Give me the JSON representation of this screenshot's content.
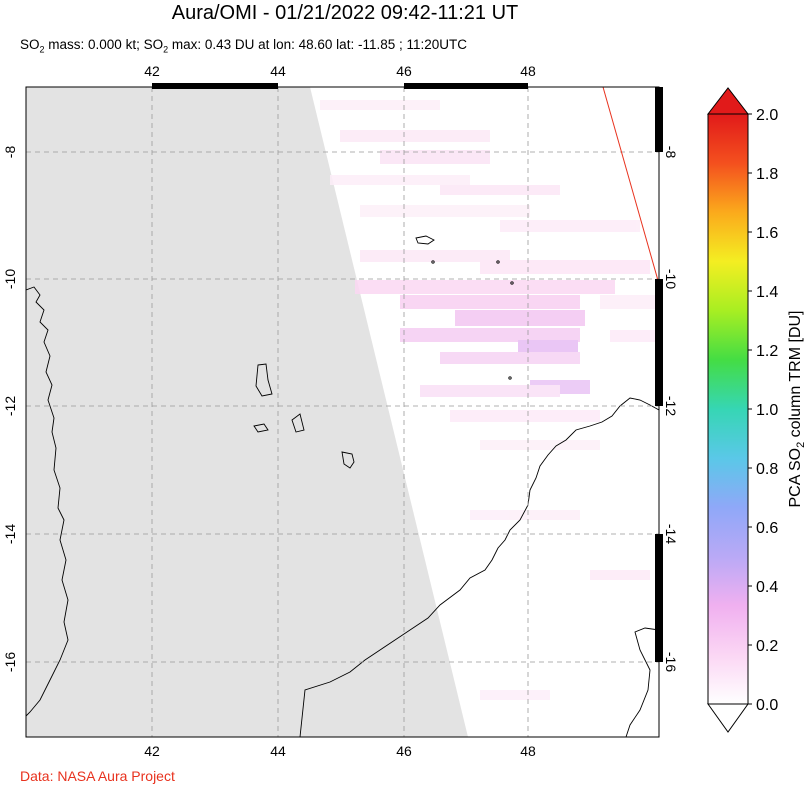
{
  "title": "Aura/OMI - 01/21/2022 09:42-11:21 UT",
  "subtitle": {
    "prefix": "SO",
    "sub": "2",
    "text": " mass: 0.000 kt; SO",
    "sub2": "2",
    "text2": " max: 0.43 DU at lon: 48.60 lat: -11.85 ; 11:20UTC"
  },
  "credit": "Data: NASA Aura Project",
  "map": {
    "lon_range": [
      40,
      50
    ],
    "lat_range": [
      -17.3,
      -7
    ],
    "lon_ticks": [
      "42",
      "44",
      "46",
      "48"
    ],
    "lat_ticks": [
      "-8",
      "-10",
      "-12",
      "-14",
      "-16"
    ],
    "grid": "dashed",
    "no_data_color": "#e3e3e3",
    "coastline_color": "#000000",
    "orbit_edge_color": "#e8321e"
  },
  "colorbar": {
    "label_prefix": "PCA SO",
    "label_sub": "2",
    "label_suffix": " column TRM [DU]",
    "ticks": [
      "0.0",
      "0.2",
      "0.4",
      "0.6",
      "0.8",
      "1.0",
      "1.2",
      "1.4",
      "1.6",
      "1.8",
      "2.0"
    ],
    "min": 0.0,
    "max": 2.0,
    "colors": [
      "#ffffff",
      "#fbd6f4",
      "#f0b0f0",
      "#b9a9f6",
      "#8fa8f8",
      "#5ac8e8",
      "#36d6b4",
      "#44dd44",
      "#a8ee22",
      "#f4ee22",
      "#fbaa1c",
      "#f4501e",
      "#e11a1a"
    ]
  }
}
